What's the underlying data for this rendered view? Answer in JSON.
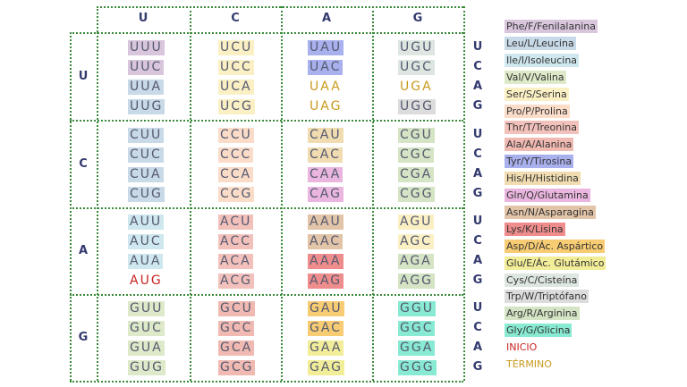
{
  "column_headers": [
    "U",
    "C",
    "A",
    "G"
  ],
  "row_headers": [
    "U",
    "C",
    "A",
    "G"
  ],
  "third_bases": [
    "U",
    "C",
    "A",
    "G"
  ],
  "colors": {
    "Phe": "#d9c6dd",
    "Leu": "#c8d9e8",
    "Ile": "#cfe7ee",
    "Val": "#dde9c8",
    "Ser": "#fbf0c4",
    "Pro": "#fadcc8",
    "Thr": "#f3c1bb",
    "Ala": "#f0b9b1",
    "Tyr": "#a9b0ee",
    "His": "#f0dcb0",
    "Gln": "#eab6df",
    "Asn": "#e2c4a8",
    "Lys": "#ef8c8c",
    "Asp": "#f8cc72",
    "Glu": "#f2ed98",
    "Cys": "#dde6e0",
    "Trp": "#dcdcdc",
    "Arg": "#d4e4c4",
    "Gly": "#88ead2",
    "start": "#cc2222",
    "stop": "#c89a1c"
  },
  "codons": [
    [
      [
        {
          "t": "UUU",
          "k": "Phe"
        },
        {
          "t": "UUC",
          "k": "Phe"
        },
        {
          "t": "UUA",
          "k": "Leu"
        },
        {
          "t": "UUG",
          "k": "Leu"
        }
      ],
      [
        {
          "t": "UCU",
          "k": "Ser"
        },
        {
          "t": "UCC",
          "k": "Ser"
        },
        {
          "t": "UCA",
          "k": "Ser"
        },
        {
          "t": "UCG",
          "k": "Ser"
        }
      ],
      [
        {
          "t": "UAU",
          "k": "Tyr"
        },
        {
          "t": "UAC",
          "k": "Tyr"
        },
        {
          "t": "UAA",
          "k": "stop"
        },
        {
          "t": "UAG",
          "k": "stop"
        }
      ],
      [
        {
          "t": "UGU",
          "k": "Cys"
        },
        {
          "t": "UGC",
          "k": "Cys"
        },
        {
          "t": "UGA",
          "k": "stop"
        },
        {
          "t": "UGG",
          "k": "Trp"
        }
      ]
    ],
    [
      [
        {
          "t": "CUU",
          "k": "Leu"
        },
        {
          "t": "CUC",
          "k": "Leu"
        },
        {
          "t": "CUA",
          "k": "Leu"
        },
        {
          "t": "CUG",
          "k": "Leu"
        }
      ],
      [
        {
          "t": "CCU",
          "k": "Pro"
        },
        {
          "t": "CCC",
          "k": "Pro"
        },
        {
          "t": "CCA",
          "k": "Pro"
        },
        {
          "t": "CCG",
          "k": "Pro"
        }
      ],
      [
        {
          "t": "CAU",
          "k": "His"
        },
        {
          "t": "CAC",
          "k": "His"
        },
        {
          "t": "CAA",
          "k": "Gln"
        },
        {
          "t": "CAG",
          "k": "Gln"
        }
      ],
      [
        {
          "t": "CGU",
          "k": "Arg"
        },
        {
          "t": "CGC",
          "k": "Arg"
        },
        {
          "t": "CGA",
          "k": "Arg"
        },
        {
          "t": "CGG",
          "k": "Arg"
        }
      ]
    ],
    [
      [
        {
          "t": "AUU",
          "k": "Ile"
        },
        {
          "t": "AUC",
          "k": "Ile"
        },
        {
          "t": "AUA",
          "k": "Ile"
        },
        {
          "t": "AUG",
          "k": "start"
        }
      ],
      [
        {
          "t": "ACU",
          "k": "Thr"
        },
        {
          "t": "ACC",
          "k": "Thr"
        },
        {
          "t": "ACA",
          "k": "Thr"
        },
        {
          "t": "ACG",
          "k": "Thr"
        }
      ],
      [
        {
          "t": "AAU",
          "k": "Asn"
        },
        {
          "t": "AAC",
          "k": "Asn"
        },
        {
          "t": "AAA",
          "k": "Lys"
        },
        {
          "t": "AAG",
          "k": "Lys"
        }
      ],
      [
        {
          "t": "AGU",
          "k": "Ser"
        },
        {
          "t": "AGC",
          "k": "Ser"
        },
        {
          "t": "AGA",
          "k": "Arg"
        },
        {
          "t": "AGG",
          "k": "Arg"
        }
      ]
    ],
    [
      [
        {
          "t": "GUU",
          "k": "Val"
        },
        {
          "t": "GUC",
          "k": "Val"
        },
        {
          "t": "GUA",
          "k": "Val"
        },
        {
          "t": "GUG",
          "k": "Val"
        }
      ],
      [
        {
          "t": "GCU",
          "k": "Ala"
        },
        {
          "t": "GCC",
          "k": "Ala"
        },
        {
          "t": "GCA",
          "k": "Ala"
        },
        {
          "t": "GCG",
          "k": "Ala"
        }
      ],
      [
        {
          "t": "GAU",
          "k": "Asp"
        },
        {
          "t": "GAC",
          "k": "Asp"
        },
        {
          "t": "GAA",
          "k": "Glu"
        },
        {
          "t": "GAG",
          "k": "Glu"
        }
      ],
      [
        {
          "t": "GGU",
          "k": "Gly"
        },
        {
          "t": "GGC",
          "k": "Gly"
        },
        {
          "t": "GGA",
          "k": "Gly"
        },
        {
          "t": "GGG",
          "k": "Gly"
        }
      ]
    ]
  ],
  "legend": [
    {
      "text": "Phe/F/Fenilalanina",
      "k": "Phe"
    },
    {
      "text": "Leu/L/Leucina",
      "k": "Leu"
    },
    {
      "text": "Ile/I/Isoleucina",
      "k": "Ile"
    },
    {
      "text": "Val/V/Valina",
      "k": "Val"
    },
    {
      "text": "Ser/S/Serina",
      "k": "Ser"
    },
    {
      "text": "Pro/P/Prolina",
      "k": "Pro"
    },
    {
      "text": "Thr/T/Treonina",
      "k": "Thr"
    },
    {
      "text": "Ala/A/Alanina",
      "k": "Ala"
    },
    {
      "text": "Tyr/Y/Tirosina",
      "k": "Tyr"
    },
    {
      "text": "His/H/Histidina",
      "k": "His"
    },
    {
      "text": "Gln/Q/Glutamina",
      "k": "Gln"
    },
    {
      "text": "Asn/N/Asparagina",
      "k": "Asn"
    },
    {
      "text": "Lys/K/Lisina",
      "k": "Lys"
    },
    {
      "text": "Asp/D/Ác. Aspártico",
      "k": "Asp"
    },
    {
      "text": "Glu/E/Ác. Glutámico",
      "k": "Glu"
    },
    {
      "text": "Cys/C/Cisteína",
      "k": "Cys"
    },
    {
      "text": "Trp/W/Triptófano",
      "k": "Trp"
    },
    {
      "text": "Arg/R/Arginina",
      "k": "Arg"
    },
    {
      "text": "Gly/G/Glicina",
      "k": "Gly"
    },
    {
      "text": "INICIO",
      "k": "start"
    },
    {
      "text": "TÉRMINO",
      "k": "stop"
    }
  ]
}
